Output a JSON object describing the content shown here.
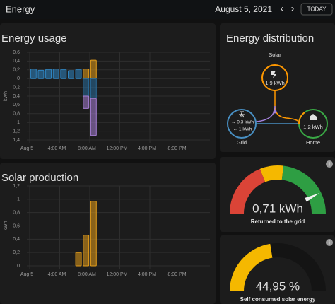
{
  "header": {
    "title": "Energy",
    "date": "August 5, 2021",
    "prev": "‹",
    "next": "›",
    "today": "TODAY"
  },
  "chart_data": [
    {
      "type": "bar",
      "title": "Energy usage",
      "y_label": "kWh",
      "x": [
        0,
        1,
        2,
        3,
        4,
        5,
        6,
        7,
        8
      ],
      "xlim": [
        0,
        24
      ],
      "xticks": [
        {
          "value": 0,
          "label": "Aug 5"
        },
        {
          "value": 4,
          "label": "4:00 AM"
        },
        {
          "value": 8,
          "label": "8:00 AM"
        },
        {
          "value": 12,
          "label": "12:00 PM"
        },
        {
          "value": 16,
          "label": "4:00 PM"
        },
        {
          "value": 20,
          "label": "8:00 PM"
        }
      ],
      "ylim": [
        -1.4,
        0.6
      ],
      "yticks": [
        {
          "value": 0.6,
          "label": "0,6"
        },
        {
          "value": 0.4,
          "label": "0,4"
        },
        {
          "value": 0.2,
          "label": "0,2"
        },
        0,
        {
          "value": -0.2,
          "label": "0,2"
        },
        {
          "value": -0.4,
          "label": "0,4"
        },
        {
          "value": -0.6,
          "label": "0,6"
        },
        {
          "value": -0.8,
          "label": "0,8"
        },
        {
          "value": -1,
          "label": "1"
        },
        {
          "value": -1.2,
          "label": "1,2"
        },
        {
          "value": -1.4,
          "label": "1,4"
        }
      ],
      "grid": true,
      "series": [
        {
          "color": "#2f86c4",
          "values": [
            0.22,
            0.19,
            0.21,
            0.22,
            0.21,
            0.18,
            0.21,
            0,
            0
          ]
        },
        {
          "color": "#e39d1a",
          "values": [
            0,
            0,
            0,
            0,
            0,
            0,
            0,
            0.22,
            0.42
          ]
        },
        {
          "color": "#2a6d9c",
          "values": [
            0,
            0,
            0,
            0,
            0,
            0,
            0,
            -0.4,
            -0.45
          ]
        },
        {
          "color": "#a77fd6",
          "values": [
            0,
            0,
            0,
            0,
            0,
            0,
            0,
            -0.28,
            -0.85
          ]
        }
      ]
    },
    {
      "type": "bar",
      "title": "Solar production",
      "y_label": "kWh",
      "x": [
        6,
        7,
        8
      ],
      "xlim": [
        0,
        24
      ],
      "xticks": [
        {
          "value": 0,
          "label": "Aug 5"
        },
        {
          "value": 4,
          "label": "4:00 AM"
        },
        {
          "value": 8,
          "label": "8:00 AM"
        },
        {
          "value": 12,
          "label": "12:00 PM"
        },
        {
          "value": 16,
          "label": "4:00 PM"
        },
        {
          "value": 20,
          "label": "8:00 PM"
        }
      ],
      "ylim": [
        0,
        1.2
      ],
      "yticks": [
        0,
        {
          "value": 0.2,
          "label": "0,2"
        },
        {
          "value": 0.4,
          "label": "0,4"
        },
        {
          "value": 0.6,
          "label": "0,6"
        },
        {
          "value": 0.8,
          "label": "0,8"
        },
        1,
        {
          "value": 1.2,
          "label": "1,2"
        }
      ],
      "grid": true,
      "series": [
        {
          "color": "#e39d1a",
          "values": [
            0.2,
            0.46,
            0.97
          ]
        }
      ]
    }
  ],
  "distribution": {
    "title": "Energy distribution",
    "solar": {
      "label": "Solar",
      "value": "1,9 kWh"
    },
    "grid": {
      "label": "Grid",
      "returned": "→ 0,3 kWh",
      "consumed": "← 1 kWh"
    },
    "home": {
      "label": "Home",
      "value": "1,2 kWh"
    }
  },
  "gauges": [
    {
      "value": 0.71,
      "value_label": "0,71 kWh",
      "label": "Returned to the grid",
      "range": [
        -1,
        1
      ]
    },
    {
      "value": 44.95,
      "value_label": "44,95 %",
      "label": "Self consumed solar energy",
      "range": [
        0,
        100
      ]
    }
  ]
}
